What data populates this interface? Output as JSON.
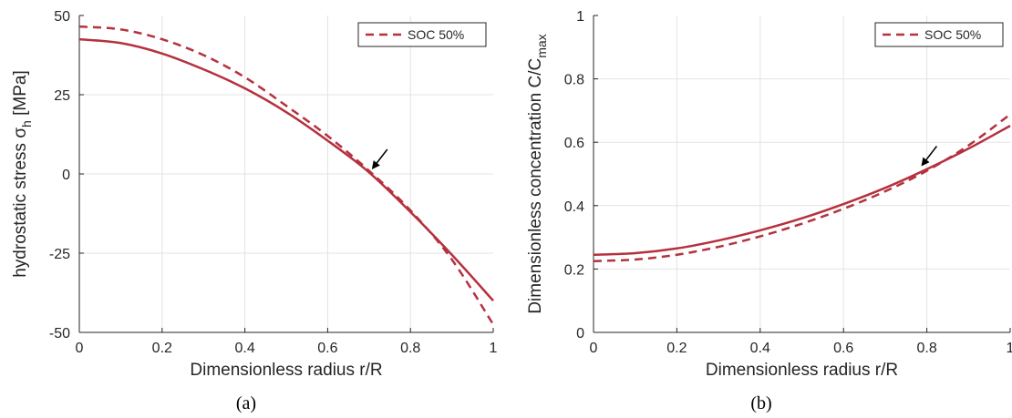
{
  "colors": {
    "series": "#b5313e",
    "grid": "#e3e3e3",
    "axis": "#262626",
    "arrow": "#000000"
  },
  "chart_data": [
    {
      "type": "line",
      "caption": "(a)",
      "xlabel": "Dimensionless radius r/R",
      "ylabel": "hydrostatic stress σ",
      "ylabel_sub": "h",
      "ylabel_suffix": " [MPa]",
      "xlim": [
        0,
        1
      ],
      "ylim": [
        -50,
        50
      ],
      "xticks": [
        0,
        0.2,
        0.4,
        0.6,
        0.8,
        1
      ],
      "yticks": [
        -50,
        -25,
        0,
        25,
        50
      ],
      "xtick_labels": [
        "0",
        "0.2",
        "0.4",
        "0.6",
        "0.8",
        "1"
      ],
      "ytick_labels": [
        "-50",
        "-25",
        "0",
        "25",
        "50"
      ],
      "grid": true,
      "legend": {
        "placement": "top-right",
        "entries": [
          "SOC 50%"
        ],
        "style": "dashed"
      },
      "annotations": [
        {
          "type": "arrow",
          "points_to": [
            0.7,
            0
          ]
        }
      ],
      "series": [
        {
          "style": "solid",
          "x": [
            0,
            0.1,
            0.2,
            0.3,
            0.4,
            0.5,
            0.6,
            0.7,
            0.8,
            0.9,
            1.0
          ],
          "y": [
            42.5,
            41.3,
            38.0,
            33.0,
            27.0,
            19.5,
            10.5,
            0.5,
            -12.0,
            -25.5,
            -40.0
          ]
        },
        {
          "name": "SOC 50%",
          "style": "dashed",
          "x": [
            0,
            0.1,
            0.2,
            0.3,
            0.4,
            0.5,
            0.6,
            0.7,
            0.8,
            0.9,
            1.0
          ],
          "y": [
            46.5,
            45.6,
            42.5,
            37.5,
            30.5,
            21.5,
            12.0,
            1.0,
            -11.5,
            -27.0,
            -47.5
          ]
        }
      ]
    },
    {
      "type": "line",
      "caption": "(b)",
      "xlabel": "Dimensionless radius r/R",
      "ylabel": "Dimensionless concentration C/C",
      "ylabel_sub": "max",
      "ylabel_suffix": "",
      "xlim": [
        0,
        1
      ],
      "ylim": [
        0,
        1
      ],
      "xticks": [
        0,
        0.2,
        0.4,
        0.6,
        0.8,
        1
      ],
      "yticks": [
        0,
        0.2,
        0.4,
        0.6,
        0.8,
        1
      ],
      "xtick_labels": [
        "0",
        "0.2",
        "0.4",
        "0.6",
        "0.8",
        "1"
      ],
      "ytick_labels": [
        "0",
        "0.2",
        "0.4",
        "0.6",
        "0.8",
        "1"
      ],
      "grid": true,
      "legend": {
        "placement": "top-right",
        "entries": [
          "SOC 50%"
        ],
        "style": "dashed"
      },
      "annotations": [
        {
          "type": "arrow",
          "points_to": [
            0.78,
            0.51
          ]
        }
      ],
      "series": [
        {
          "style": "solid",
          "x": [
            0,
            0.1,
            0.2,
            0.3,
            0.4,
            0.5,
            0.6,
            0.7,
            0.8,
            0.9,
            1.0
          ],
          "y": [
            0.245,
            0.25,
            0.265,
            0.29,
            0.322,
            0.36,
            0.405,
            0.456,
            0.515,
            0.58,
            0.652
          ]
        },
        {
          "name": "SOC 50%",
          "style": "dashed",
          "x": [
            0,
            0.1,
            0.2,
            0.3,
            0.4,
            0.5,
            0.6,
            0.7,
            0.8,
            0.9,
            1.0
          ],
          "y": [
            0.225,
            0.23,
            0.245,
            0.27,
            0.303,
            0.343,
            0.39,
            0.445,
            0.51,
            0.59,
            0.688
          ]
        }
      ]
    }
  ]
}
